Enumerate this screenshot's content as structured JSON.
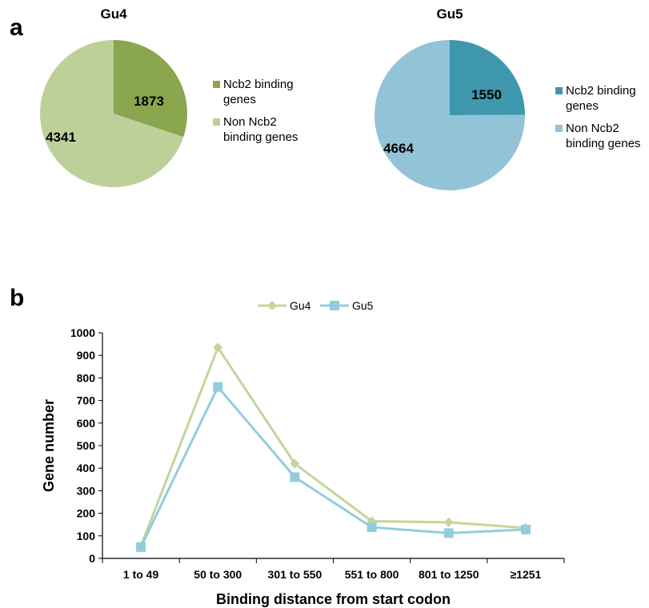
{
  "panels": {
    "a": "a",
    "b": "b"
  },
  "chart_data": [
    {
      "type": "pie",
      "title": "Gu4",
      "slices": [
        {
          "label": "Ncb2 binding genes",
          "value": 1873,
          "color": "#8aa64f"
        },
        {
          "label": "Non Ncb2 binding genes",
          "value": 4341,
          "color": "#bdd09a"
        }
      ],
      "legend_position": "right"
    },
    {
      "type": "pie",
      "title": "Gu5",
      "slices": [
        {
          "label": "Ncb2 binding genes",
          "value": 1550,
          "color": "#3f97ae"
        },
        {
          "label": "Non Ncb2 binding genes",
          "value": 4664,
          "color": "#93c3d6"
        }
      ],
      "legend_position": "right"
    },
    {
      "type": "line",
      "title": "",
      "xlabel": "Binding distance from start codon",
      "ylabel": "Gene number",
      "categories": [
        "1 to 49",
        "50 to 300",
        "301 to 550",
        "551 to 800",
        "801 to 1250",
        "≥1251"
      ],
      "ylim": [
        0,
        1000
      ],
      "yticks": [
        0,
        100,
        200,
        300,
        400,
        500,
        600,
        700,
        800,
        900,
        1000
      ],
      "legend_position": "top",
      "series": [
        {
          "name": "Gu4",
          "values": [
            55,
            935,
            420,
            165,
            160,
            135
          ],
          "color": "#c3d69b",
          "marker": "diamond"
        },
        {
          "name": "Gu5",
          "values": [
            50,
            760,
            360,
            138,
            112,
            128
          ],
          "color": "#93cddd",
          "marker": "square"
        }
      ]
    }
  ]
}
